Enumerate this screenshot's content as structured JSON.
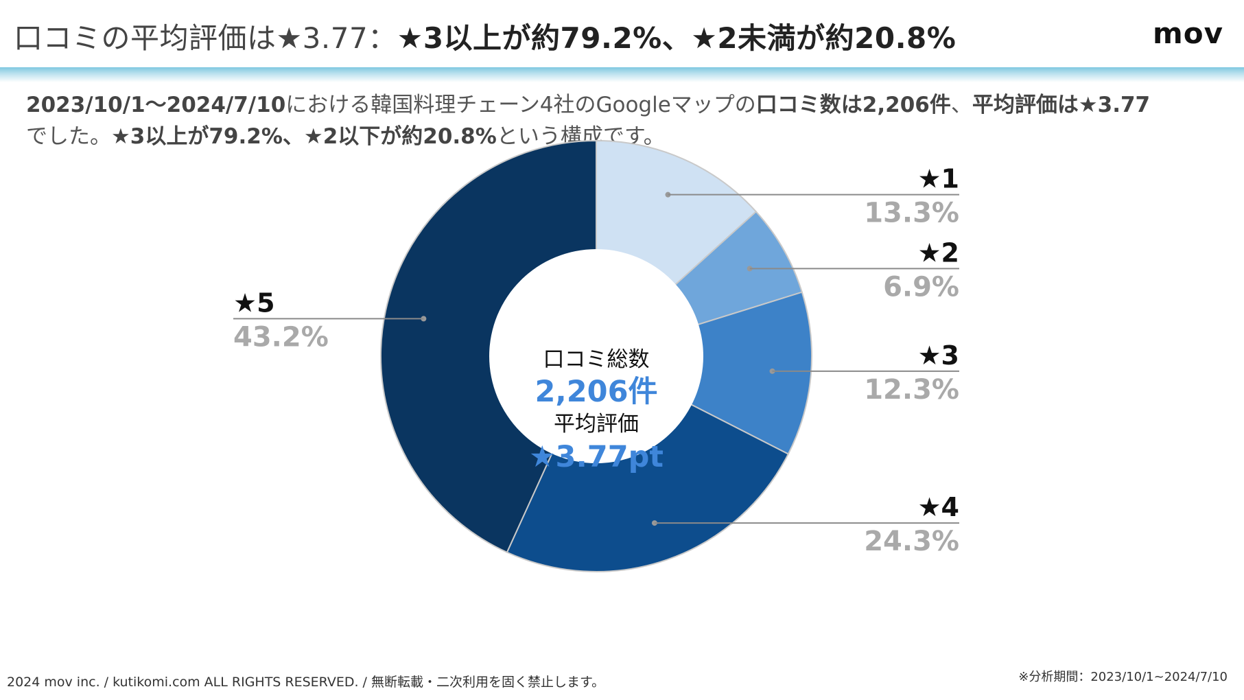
{
  "header": {
    "title_prefix": "口コミの平均評価は★3.77：",
    "title_emphasis": "★3以上が約79.2%、★2未満が約20.8%",
    "logo": "mov"
  },
  "summary": {
    "p1": "2023/10/1〜2024/7/10",
    "p2": "における韓国料理チェーン4社のGoogleマップの",
    "p3": "口コミ数は2,206件",
    "p4": "、",
    "p5": "平均評価は★3.77",
    "p6": "でした。",
    "p7": "★3以上が79.2%、★2以下が約20.8%",
    "p8": "という構成です。"
  },
  "chart_data": {
    "type": "pie",
    "title": "",
    "categories": [
      "★1",
      "★2",
      "★3",
      "★4",
      "★5"
    ],
    "values": [
      13.3,
      6.9,
      12.3,
      24.3,
      43.2
    ],
    "value_labels": [
      "13.3%",
      "6.9%",
      "12.3%",
      "24.3%",
      "43.2%"
    ],
    "colors": [
      "#cfe1f3",
      "#6fa6db",
      "#3d82c8",
      "#0d4d8d",
      "#0a3560"
    ],
    "center": {
      "label1": "口コミ総数",
      "value1": "2,206件",
      "label2": "平均評価",
      "value2": "★3.77pt"
    }
  },
  "footer": {
    "copyright": "2024 mov inc. / kutikomi.com ALL RIGHTS RESERVED. / 無断転載・二次利用を固く禁止します。",
    "period": "※分析期間：2023/10/1~2024/7/10"
  }
}
